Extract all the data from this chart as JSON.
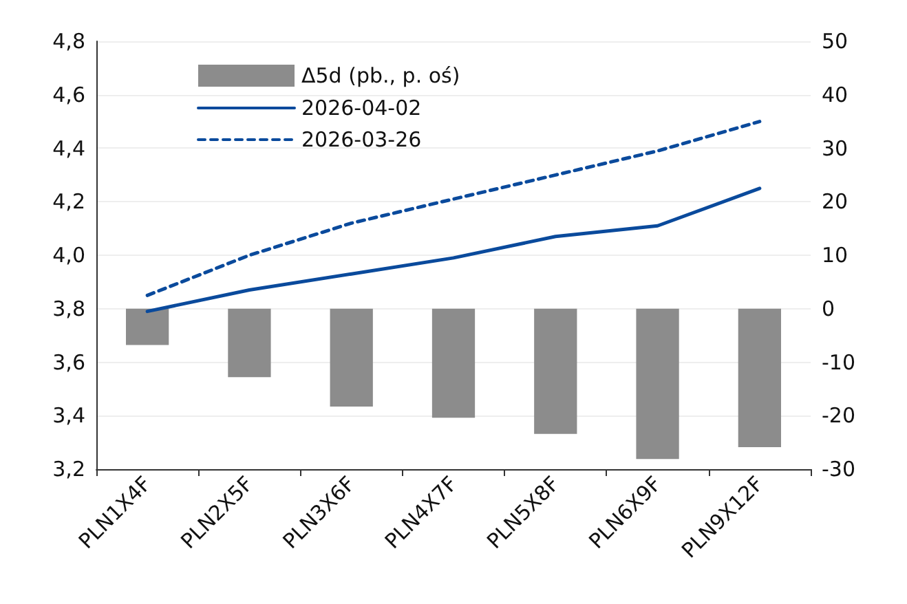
{
  "chart_data": {
    "type": "line",
    "categories": [
      "PLN1X4F",
      "PLN2X5F",
      "PLN3X6F",
      "PLN4X7F",
      "PLN5X8F",
      "PLN6X9F",
      "PLN9X12F"
    ],
    "series": [
      {
        "name": "Δ5d (pb., p. oś)",
        "type": "bar",
        "axis": "y2",
        "color": "#8c8c8c",
        "values": [
          -6.8,
          -12.8,
          -18.3,
          -20.4,
          -23.4,
          -28.1,
          -25.9
        ]
      },
      {
        "name": "2026-04-02",
        "color": "#0a4a9c",
        "line_style": "solid",
        "values": [
          3.79,
          3.87,
          3.93,
          3.99,
          4.07,
          4.11,
          4.25
        ]
      },
      {
        "name": "2026-03-26",
        "color": "#0a4a9c",
        "line_style": "dashed",
        "values": [
          3.85,
          4.0,
          4.12,
          4.21,
          4.3,
          4.39,
          4.5
        ]
      }
    ],
    "ylim": [
      3.2,
      4.8
    ],
    "yticks": [
      {
        "value": 3.2,
        "label": "3,2"
      },
      {
        "value": 3.4,
        "label": "3,4"
      },
      {
        "value": 3.6,
        "label": "3,6"
      },
      {
        "value": 3.8,
        "label": "3,8"
      },
      {
        "value": 4.0,
        "label": "4,0"
      },
      {
        "value": 4.2,
        "label": "4,2"
      },
      {
        "value": 4.4,
        "label": "4,4"
      },
      {
        "value": 4.6,
        "label": "4,6"
      },
      {
        "value": 4.8,
        "label": "4,8"
      }
    ],
    "y2lim": [
      -30,
      50
    ],
    "y2ticks": [
      -30,
      -20,
      -10,
      0,
      10,
      20,
      30,
      40,
      50
    ],
    "grid": "y",
    "legend": "top left",
    "marker": "none"
  }
}
